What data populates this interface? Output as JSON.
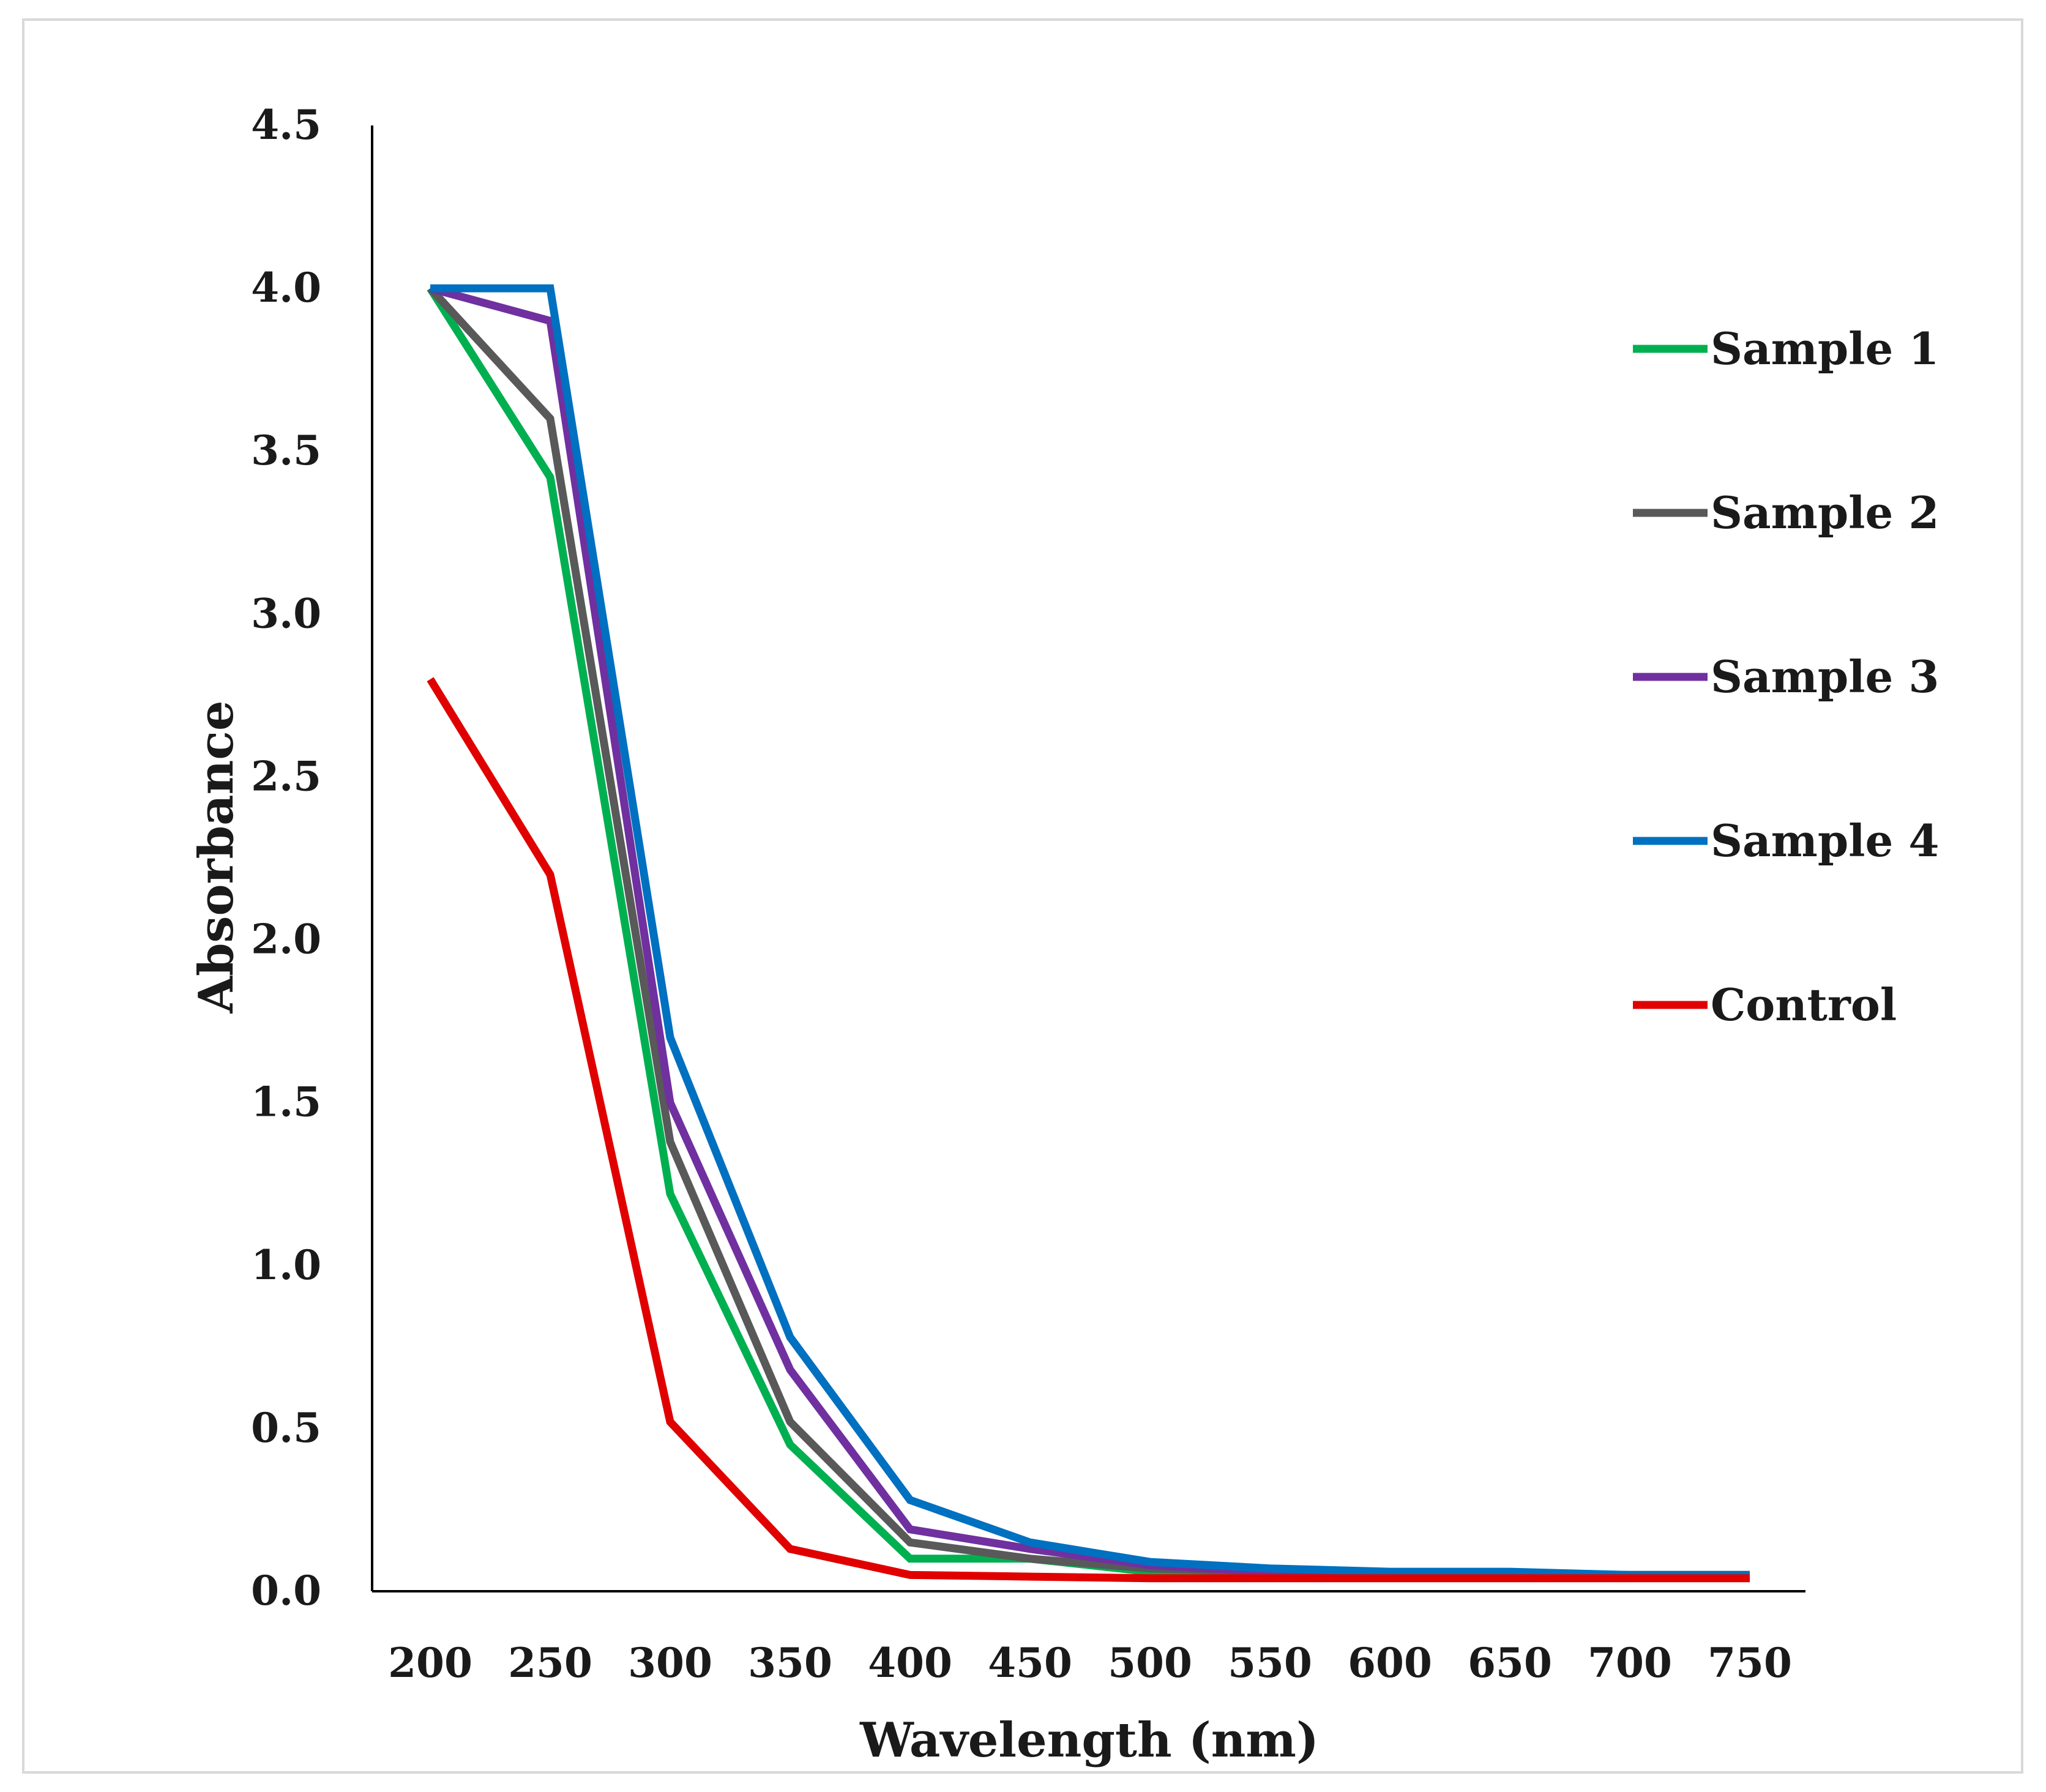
{
  "chart_data": {
    "type": "line",
    "title": "",
    "xlabel": "Wavelength (nm)",
    "ylabel": "Absorbance",
    "x": [
      200,
      250,
      300,
      350,
      400,
      450,
      500,
      550,
      600,
      650,
      700,
      750
    ],
    "x_tick_labels": [
      "200",
      "250",
      "300",
      "350",
      "400",
      "450",
      "500",
      "550",
      "600",
      "650",
      "700",
      "750"
    ],
    "y_tick_values": [
      0,
      0.5,
      1,
      1.5,
      2,
      2.5,
      3,
      3.5,
      4,
      4.5
    ],
    "y_tick_labels": [
      "0.0",
      "0.5",
      "1.0",
      "1.5",
      "2.0",
      "2.5",
      "3.0",
      "3.5",
      "4.0",
      "4.5"
    ],
    "ylim": [
      0,
      4.5
    ],
    "grid": false,
    "legend_position": "right",
    "series": [
      {
        "name": "Sample 1",
        "color": "#00b050",
        "values": [
          4.0,
          3.42,
          1.22,
          0.45,
          0.1,
          0.1,
          0.06,
          0.05,
          0.05,
          0.05,
          0.05,
          0.05
        ]
      },
      {
        "name": "Sample 2",
        "color": "#595959",
        "values": [
          4.0,
          3.6,
          1.38,
          0.52,
          0.15,
          0.1,
          0.07,
          0.06,
          0.05,
          0.05,
          0.05,
          0.05
        ]
      },
      {
        "name": "Sample 3",
        "color": "#7030a0",
        "values": [
          4.0,
          3.9,
          1.5,
          0.68,
          0.19,
          0.13,
          0.08,
          0.06,
          0.05,
          0.05,
          0.05,
          0.05
        ]
      },
      {
        "name": "Sample 4",
        "color": "#0070c0",
        "values": [
          4.0,
          4.0,
          1.7,
          0.78,
          0.28,
          0.15,
          0.09,
          0.07,
          0.06,
          0.06,
          0.05,
          0.05
        ]
      },
      {
        "name": "Control",
        "color": "#e00000",
        "values": [
          2.8,
          2.2,
          0.52,
          0.13,
          0.05,
          0.045,
          0.04,
          0.04,
          0.04,
          0.04,
          0.04,
          0.04
        ]
      }
    ]
  }
}
